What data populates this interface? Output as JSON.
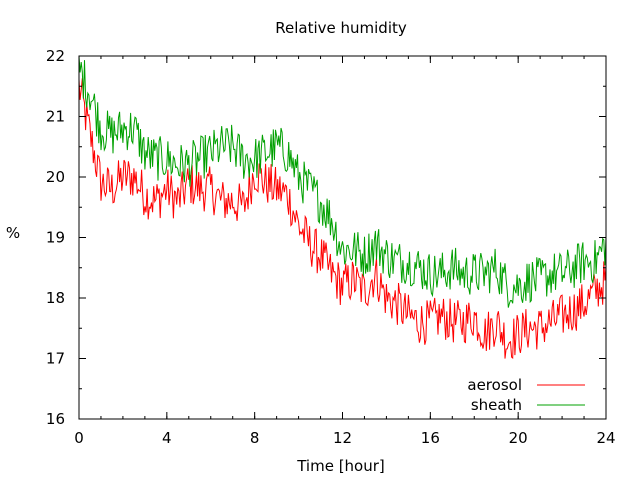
{
  "chart_data": {
    "type": "line",
    "title": "Relative humidity",
    "xlabel": "Time [hour]",
    "ylabel": "%",
    "xlim": [
      0,
      24
    ],
    "ylim": [
      16,
      22
    ],
    "x_ticks": [
      0,
      4,
      8,
      12,
      16,
      20,
      24
    ],
    "y_ticks": [
      16,
      17,
      18,
      19,
      20,
      21,
      22
    ],
    "grid": false,
    "legend_position": "bottom-right",
    "series": [
      {
        "name": "aerosol",
        "color": "#ff0000",
        "x": [
          0,
          0.5,
          1,
          1.5,
          2,
          2.5,
          3,
          3.5,
          4,
          4.5,
          5,
          5.5,
          6,
          6.5,
          7,
          7.5,
          8,
          8.5,
          9,
          9.5,
          10,
          10.5,
          11,
          11.5,
          12,
          12.5,
          13,
          13.5,
          14,
          14.5,
          15,
          15.5,
          16,
          16.5,
          17,
          17.5,
          18,
          18.5,
          19,
          19.5,
          20,
          20.5,
          21,
          21.5,
          22,
          22.5,
          23,
          23.5,
          24
        ],
        "y": [
          21.5,
          20.7,
          19.9,
          19.8,
          20.0,
          20.0,
          19.7,
          19.6,
          19.8,
          19.6,
          19.9,
          19.8,
          19.8,
          19.6,
          19.6,
          19.5,
          20.1,
          19.9,
          19.8,
          19.7,
          19.2,
          18.9,
          18.7,
          18.4,
          18.2,
          18.3,
          18.1,
          18.4,
          18.0,
          17.9,
          17.7,
          17.6,
          17.6,
          17.7,
          17.6,
          17.6,
          17.7,
          17.4,
          17.6,
          17.3,
          17.4,
          17.5,
          17.5,
          17.6,
          17.7,
          17.8,
          17.9,
          18.1,
          18.3
        ]
      },
      {
        "name": "sheath",
        "color": "#00a000",
        "x": [
          0,
          0.5,
          1,
          1.5,
          2,
          2.5,
          3,
          3.5,
          4,
          4.5,
          5,
          5.5,
          6,
          6.5,
          7,
          7.5,
          8,
          8.5,
          9,
          9.5,
          10,
          10.5,
          11,
          11.5,
          12,
          12.5,
          13,
          13.5,
          14,
          14.5,
          15,
          15.5,
          16,
          16.5,
          17,
          17.5,
          18,
          18.5,
          19,
          19.5,
          20,
          20.5,
          21,
          21.5,
          22,
          22.5,
          23,
          23.5,
          24
        ],
        "y": [
          21.8,
          21.4,
          20.8,
          20.7,
          20.8,
          20.8,
          20.4,
          20.3,
          20.3,
          20.2,
          20.2,
          20.3,
          20.4,
          20.5,
          20.5,
          20.3,
          20.3,
          20.4,
          20.5,
          20.4,
          20.0,
          19.8,
          19.6,
          19.3,
          18.8,
          18.8,
          18.7,
          18.9,
          18.7,
          18.6,
          18.6,
          18.5,
          18.4,
          18.4,
          18.5,
          18.4,
          18.4,
          18.4,
          18.5,
          18.2,
          18.2,
          18.3,
          18.3,
          18.4,
          18.4,
          18.5,
          18.6,
          18.6,
          18.9
        ]
      }
    ]
  }
}
